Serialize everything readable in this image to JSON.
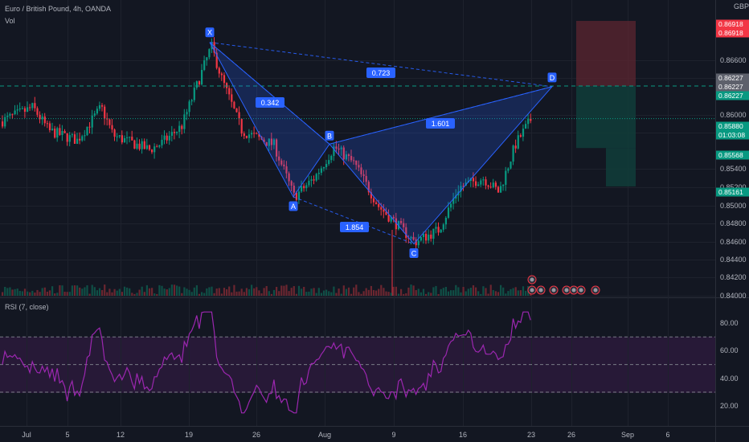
{
  "header": {
    "symbol": "Euro / British Pound, 4h, OANDA",
    "volume_label": "Vol"
  },
  "rsi_panel": {
    "label": "RSI (7, close)",
    "ticks": [
      "80.00",
      "60.00",
      "40.00",
      "20.00"
    ]
  },
  "price_axis": {
    "unit": "GBP",
    "ticks": [
      "0.86600",
      "0.86400",
      "0.86000",
      "0.85800",
      "0.85400",
      "0.85200",
      "0.85000",
      "0.84800",
      "0.84600",
      "0.84400",
      "0.84200",
      "0.84000"
    ],
    "tags": [
      {
        "label": "0.86918",
        "color": "#f23645"
      },
      {
        "label": "0.86918",
        "color": "#f23645"
      },
      {
        "label": "0.86227",
        "color": "#5d606b"
      },
      {
        "label": "0.86227",
        "color": "#5d606b"
      },
      {
        "label": "0.86227",
        "color": "#089981"
      },
      {
        "label": "0.85880",
        "color": "#089981"
      },
      {
        "label": "01:03:08",
        "color": "#089981"
      },
      {
        "label": "0.85568",
        "color": "#089981"
      },
      {
        "label": "0.85161",
        "color": "#089981"
      }
    ]
  },
  "time_axis": {
    "ticks": [
      "Jul",
      "5",
      "12",
      "19",
      "26",
      "Aug",
      "9",
      "16",
      "23",
      "26",
      "Sep",
      "6"
    ]
  },
  "colors": {
    "up": "#089981",
    "down": "#f23645",
    "pattern": "#2962ff",
    "rsi": "#9c27b0"
  },
  "chart_data": {
    "type": "candlestick",
    "title": "Euro / British Pound, 4h, OANDA",
    "x_range": [
      "Jul",
      "Sep"
    ],
    "ylim": [
      0.84,
      0.8714
    ],
    "current_price": 0.8588,
    "harmonic_pattern": {
      "points": [
        {
          "label": "X",
          "price": 0.8669
        },
        {
          "label": "A",
          "price": 0.8505
        },
        {
          "label": "B",
          "price": 0.8561
        },
        {
          "label": "C",
          "price": 0.8455
        },
        {
          "label": "D",
          "price": 0.8622
        }
      ],
      "ratios": [
        {
          "label": "0.342"
        },
        {
          "label": "0.723"
        },
        {
          "label": "1.601"
        },
        {
          "label": "1.854"
        }
      ]
    },
    "position": {
      "stop_loss": 0.86918,
      "entry": 0.86227,
      "targets": [
        0.85568,
        0.85161
      ]
    },
    "rsi": {
      "label": "RSI (7, close)",
      "levels": [
        70,
        50,
        30
      ],
      "ylim": [
        10,
        90
      ]
    }
  }
}
